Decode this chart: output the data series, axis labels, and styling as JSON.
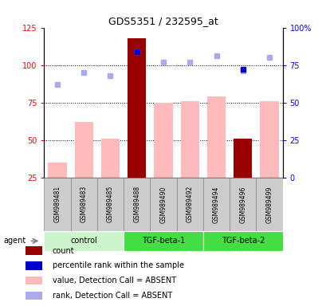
{
  "title": "GDS5351 / 232595_at",
  "samples": [
    "GSM989481",
    "GSM989483",
    "GSM989485",
    "GSM989488",
    "GSM989490",
    "GSM989492",
    "GSM989494",
    "GSM989496",
    "GSM989499"
  ],
  "groups": [
    {
      "label": "control",
      "indices": [
        0,
        1,
        2
      ],
      "color": "#ccf5cc"
    },
    {
      "label": "TGF-beta-1",
      "indices": [
        3,
        4,
        5
      ],
      "color": "#44dd44"
    },
    {
      "label": "TGF-beta-2",
      "indices": [
        6,
        7,
        8
      ],
      "color": "#44dd44"
    }
  ],
  "count_bars": [
    null,
    null,
    null,
    118,
    null,
    null,
    null,
    51,
    null
  ],
  "count_color": "#990000",
  "value_bars": [
    35,
    62,
    51,
    83,
    75,
    76,
    79,
    null,
    76
  ],
  "value_color": "#ffbbbb",
  "rank_dots": [
    62,
    70,
    68,
    84,
    77,
    77,
    81,
    71,
    80
  ],
  "rank_dot_color": "#aaaaee",
  "pct_dots": [
    null,
    null,
    null,
    84,
    null,
    null,
    null,
    72,
    null
  ],
  "pct_dot_color": "#0000cc",
  "ylim_left": [
    25,
    125
  ],
  "ylim_right": [
    0,
    100
  ],
  "yticks_left": [
    25,
    50,
    75,
    100,
    125
  ],
  "yticks_right": [
    0,
    25,
    50,
    75,
    100
  ],
  "ytick_labels_left": [
    "25",
    "50",
    "75",
    "100",
    "125"
  ],
  "ytick_labels_right": [
    "0",
    "25",
    "50",
    "75",
    "100%"
  ],
  "hlines": [
    50,
    75,
    100
  ],
  "agent_label": "agent",
  "legend": [
    {
      "color": "#990000",
      "label": "count"
    },
    {
      "color": "#0000cc",
      "label": "percentile rank within the sample"
    },
    {
      "color": "#ffbbbb",
      "label": "value, Detection Call = ABSENT"
    },
    {
      "color": "#aaaaee",
      "label": "rank, Detection Call = ABSENT"
    }
  ],
  "bar_width": 0.7,
  "sample_box_color": "#cccccc",
  "sample_box_edge": "#888888"
}
